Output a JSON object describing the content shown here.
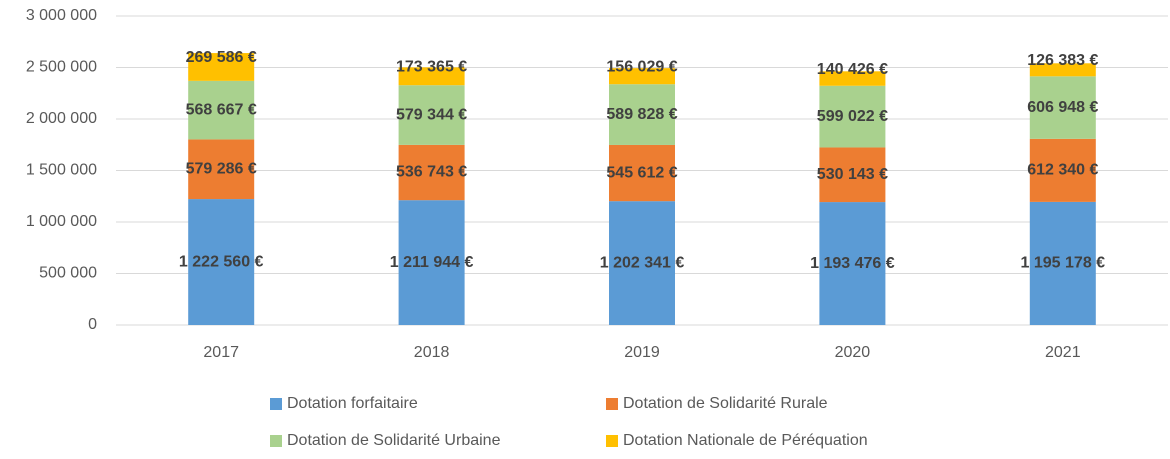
{
  "chart_data": {
    "type": "bar",
    "stacked": true,
    "categories": [
      "2017",
      "2018",
      "2019",
      "2020",
      "2021"
    ],
    "series": [
      {
        "name": "Dotation forfaitaire",
        "color": "#5b9bd5",
        "values": [
          1222560,
          1211944,
          1202341,
          1193476,
          1195178
        ],
        "value_labels": [
          "1 222 560 €",
          "1 211 944 €",
          "1 202 341 €",
          "1 193 476 €",
          "1 195 178 €"
        ]
      },
      {
        "name": "Dotation de Solidarité Rurale",
        "color": "#ed7d31",
        "values": [
          579286,
          536743,
          545612,
          530143,
          612340
        ],
        "value_labels": [
          "579 286 €",
          "536 743 €",
          "545 612 €",
          "530 143 €",
          "612 340 €"
        ]
      },
      {
        "name": "Dotation de Solidarité Urbaine",
        "color": "#a9d18e",
        "values": [
          568667,
          579344,
          589828,
          599022,
          606948
        ],
        "value_labels": [
          "568 667 €",
          "579 344 €",
          "589 828 €",
          "599 022 €",
          "606 948 €"
        ]
      },
      {
        "name": "Dotation Nationale de Péréquation",
        "color": "#ffc000",
        "values": [
          269586,
          173365,
          156029,
          140426,
          126383
        ],
        "value_labels": [
          "269 586 €",
          "173 365 €",
          "156 029 €",
          "140 426 €",
          "126 383 €"
        ]
      }
    ],
    "ylim": [
      0,
      3000000
    ],
    "yticks": [
      0,
      {
        "value": 500000,
        "label": "500 000"
      },
      {
        "value": 1000000,
        "label": "1 000 000"
      },
      {
        "value": 1500000,
        "label": "1 500 000"
      },
      {
        "value": 2000000,
        "label": "2 000 000"
      },
      {
        "value": 2500000,
        "label": "2 500 000"
      },
      {
        "value": 3000000,
        "label": "3 000 000"
      }
    ],
    "grid": true,
    "legend": "bottom"
  }
}
